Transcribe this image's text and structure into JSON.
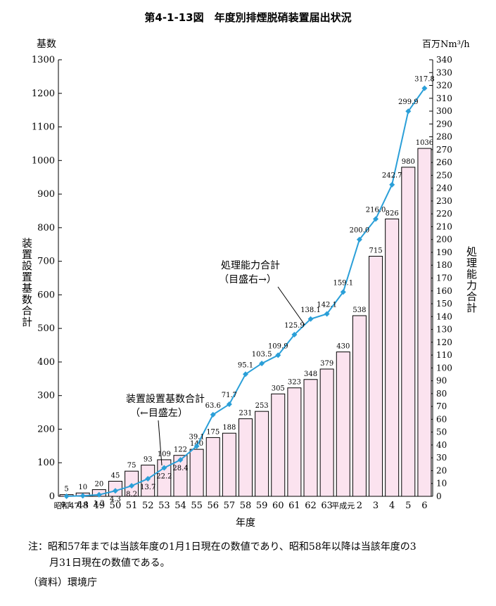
{
  "title": "第4-1-13図　年度別排煙脱硝装置届出状況",
  "left_unit": "基数",
  "right_unit": "百万Nm³/h",
  "left_axis_label": "装置設置基数合計",
  "right_axis_label": "処理能力合計",
  "annotations": {
    "line": [
      "処理能力合計",
      "（目盛右→）"
    ],
    "bar": [
      "装置設置基数合計",
      "（←目盛左）"
    ]
  },
  "note_lines": [
    "注：昭和57年までは当該年度の1月1日現在の数値であり、昭和58年以降は当該年度の3",
    "月31日現在の数値である。"
  ],
  "source": "（資料）環境庁",
  "colors": {
    "bar_fill": "#fbe3ef",
    "line": "#2a9fd8"
  },
  "chart_data": {
    "type": "bar+line",
    "xlabel": "年度",
    "categories": [
      "昭和47",
      "48",
      "49",
      "50",
      "51",
      "52",
      "53",
      "54",
      "55",
      "56",
      "57",
      "58",
      "59",
      "60",
      "61",
      "62",
      "63",
      "平成元",
      "2",
      "3",
      "4",
      "5",
      "6"
    ],
    "series": [
      {
        "name": "装置設置基数合計",
        "type": "bar",
        "axis": "left",
        "values": [
          5,
          10,
          20,
          45,
          75,
          93,
          109,
          122,
          140,
          175,
          188,
          231,
          253,
          305,
          323,
          348,
          379,
          430,
          538,
          715,
          826,
          980,
          1036
        ]
      },
      {
        "name": "処理能力合計",
        "type": "line",
        "axis": "right",
        "values": [
          0.1,
          0.4,
          1.2,
          4.3,
          8.2,
          13.7,
          22.2,
          28.4,
          39.1,
          63.6,
          71.7,
          95.1,
          103.5,
          109.9,
          125.9,
          138.1,
          142.1,
          159.1,
          200.0,
          216.0,
          242.7,
          299.9,
          317.8
        ]
      }
    ],
    "ylim_left": [
      0,
      1300
    ],
    "ylim_right": [
      0,
      340
    ],
    "ylabel_left": "装置設置基数合計",
    "ylabel_right": "処理能力合計"
  }
}
